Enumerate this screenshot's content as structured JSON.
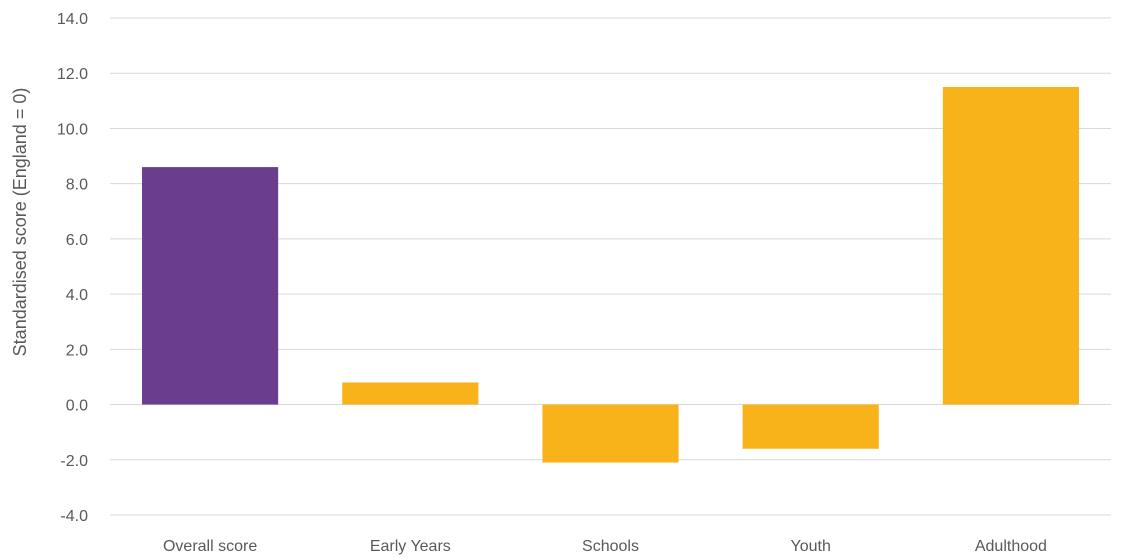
{
  "chart_data": {
    "type": "bar",
    "title": "",
    "xlabel": "",
    "ylabel": "Standardised score (England = 0)",
    "ylim": [
      -4.0,
      14.0
    ],
    "yticks": [
      "14.0",
      "12.0",
      "10.0",
      "8.0",
      "6.0",
      "4.0",
      "2.0",
      "0.0",
      "-2.0",
      "-4.0"
    ],
    "ytick_values": [
      14,
      12,
      10,
      8,
      6,
      4,
      2,
      0,
      -2,
      -4
    ],
    "categories": [
      "Overall score",
      "Early Years",
      "Schools",
      "Youth",
      "Adulthood"
    ],
    "values": [
      8.6,
      0.8,
      -2.1,
      -1.6,
      11.5
    ],
    "bar_colors": [
      "#6a3d8f",
      "#f8b21a",
      "#f8b21a",
      "#f8b21a",
      "#f8b21a"
    ],
    "gridline_color": "#d9d9d9",
    "grid": true,
    "legend": "none"
  }
}
